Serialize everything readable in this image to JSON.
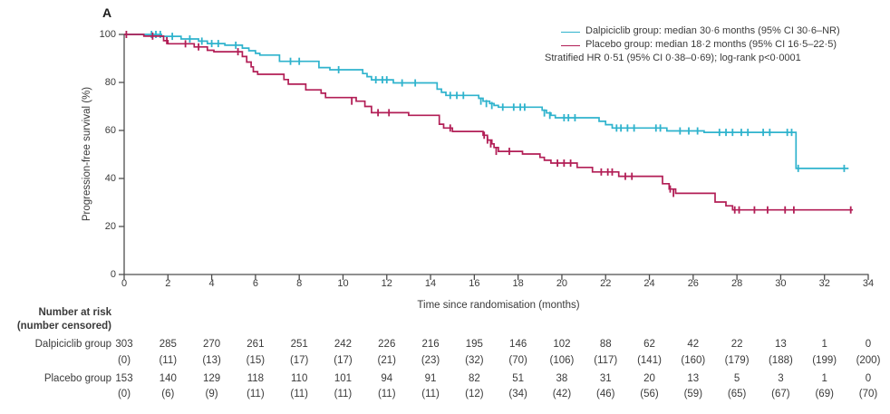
{
  "panel_label": "A",
  "axes": {
    "x_label": "Time since randomisation (months)",
    "y_label": "Progression-free survival (%)"
  },
  "legend": {
    "entries": [
      {
        "label": "Dalpiciclib group: median 30·6 months (95% CI 30·6–NR)",
        "color": "#2fb3cd"
      },
      {
        "label": "Placebo group: median 18·2 months (95% CI 16·5–22·5)",
        "color": "#b21e56"
      }
    ],
    "annotation": "Stratified HR 0·51 (95% CI 0·38–0·69); log-rank p<0·0001"
  },
  "risk_table": {
    "header_line1": "Number at risk",
    "header_line2": "(number censored)",
    "rows": [
      {
        "label": "Dalpiciclib group",
        "counts": [
          303,
          285,
          270,
          261,
          251,
          242,
          226,
          216,
          195,
          146,
          102,
          88,
          62,
          42,
          22,
          13,
          1,
          0
        ],
        "censored": [
          0,
          11,
          13,
          15,
          17,
          17,
          21,
          23,
          32,
          70,
          106,
          117,
          141,
          160,
          179,
          188,
          199,
          200
        ]
      },
      {
        "label": "Placebo group",
        "counts": [
          153,
          140,
          129,
          118,
          110,
          101,
          94,
          91,
          82,
          51,
          38,
          31,
          20,
          13,
          5,
          3,
          1,
          0
        ],
        "censored": [
          0,
          6,
          9,
          11,
          11,
          11,
          11,
          11,
          12,
          34,
          42,
          46,
          56,
          59,
          65,
          67,
          69,
          70
        ]
      }
    ]
  },
  "chart_data": {
    "type": "line",
    "subtype": "kaplan-meier-step",
    "title": "",
    "xlabel": "Time since randomisation (months)",
    "ylabel": "Progression-free survival (%)",
    "xlim": [
      0,
      34
    ],
    "ylim": [
      0,
      100
    ],
    "x_ticks": [
      0,
      2,
      4,
      6,
      8,
      10,
      12,
      14,
      16,
      18,
      20,
      22,
      24,
      26,
      28,
      30,
      32,
      34
    ],
    "y_ticks": [
      0,
      20,
      40,
      60,
      80,
      100
    ],
    "grid": false,
    "legend_position": "top-right",
    "axis_color": "#4d4d4d",
    "series": [
      {
        "name": "Dalpiciclib group",
        "color": "#2fb3cd",
        "median": "30·6 months",
        "ci_95": "30·6–NR",
        "end_month": 33.1,
        "steps": [
          [
            0,
            100
          ],
          [
            1.7,
            99.2
          ],
          [
            2.6,
            98.1
          ],
          [
            3.4,
            97.2
          ],
          [
            3.8,
            96.2
          ],
          [
            4.6,
            95.5
          ],
          [
            5.4,
            94.3
          ],
          [
            5.7,
            93.2
          ],
          [
            6.0,
            92.1
          ],
          [
            6.2,
            91.4
          ],
          [
            7.1,
            88.8
          ],
          [
            8.9,
            86.2
          ],
          [
            9.4,
            85.3
          ],
          [
            10.9,
            83.7
          ],
          [
            11.1,
            82.4
          ],
          [
            11.3,
            81.1
          ],
          [
            12.3,
            79.8
          ],
          [
            14.3,
            77.2
          ],
          [
            14.5,
            75.9
          ],
          [
            14.7,
            74.6
          ],
          [
            16.2,
            73.4
          ],
          [
            16.4,
            72.2
          ],
          [
            16.7,
            71.2
          ],
          [
            16.9,
            70.4
          ],
          [
            17.1,
            69.7
          ],
          [
            19.1,
            68.4
          ],
          [
            19.3,
            67.3
          ],
          [
            19.5,
            66.3
          ],
          [
            19.7,
            65.3
          ],
          [
            21.7,
            63.8
          ],
          [
            22.0,
            62.4
          ],
          [
            22.3,
            61.0
          ],
          [
            24.8,
            59.8
          ],
          [
            26.5,
            59.2
          ],
          [
            30.7,
            44.2
          ]
        ],
        "censors": [
          [
            1.25,
            100
          ],
          [
            1.45,
            100
          ],
          [
            1.65,
            100
          ],
          [
            2.2,
            99.2
          ],
          [
            3.0,
            98.1
          ],
          [
            3.55,
            97.2
          ],
          [
            4.0,
            96.2
          ],
          [
            4.3,
            96.2
          ],
          [
            5.1,
            95.5
          ],
          [
            7.6,
            88.8
          ],
          [
            8.0,
            88.8
          ],
          [
            9.8,
            85.3
          ],
          [
            11.5,
            81.1
          ],
          [
            11.8,
            81.1
          ],
          [
            12.0,
            81.1
          ],
          [
            12.7,
            79.8
          ],
          [
            13.3,
            79.8
          ],
          [
            14.9,
            74.6
          ],
          [
            15.2,
            74.6
          ],
          [
            15.5,
            74.6
          ],
          [
            16.3,
            72.2
          ],
          [
            16.55,
            71.2
          ],
          [
            16.8,
            70.4
          ],
          [
            17.3,
            69.7
          ],
          [
            17.8,
            69.7
          ],
          [
            18.1,
            69.7
          ],
          [
            18.3,
            69.7
          ],
          [
            19.2,
            67.3
          ],
          [
            19.45,
            66.3
          ],
          [
            20.1,
            65.3
          ],
          [
            20.3,
            65.3
          ],
          [
            20.6,
            65.3
          ],
          [
            22.5,
            61.0
          ],
          [
            22.7,
            61.0
          ],
          [
            23.0,
            61.0
          ],
          [
            23.3,
            61.0
          ],
          [
            24.3,
            61.0
          ],
          [
            24.5,
            61.0
          ],
          [
            25.4,
            59.8
          ],
          [
            25.8,
            59.8
          ],
          [
            26.2,
            59.8
          ],
          [
            27.2,
            59.2
          ],
          [
            27.5,
            59.2
          ],
          [
            27.8,
            59.2
          ],
          [
            28.2,
            59.2
          ],
          [
            28.5,
            59.2
          ],
          [
            29.2,
            59.2
          ],
          [
            29.5,
            59.2
          ],
          [
            30.3,
            59.2
          ],
          [
            30.5,
            59.2
          ],
          [
            30.8,
            44.2
          ],
          [
            32.9,
            44.2
          ]
        ]
      },
      {
        "name": "Placebo group",
        "color": "#b21e56",
        "median": "18·2 months",
        "ci_95": "16·5–22·5",
        "end_month": 33.3,
        "steps": [
          [
            0,
            100
          ],
          [
            0.9,
            99.3
          ],
          [
            1.8,
            97.4
          ],
          [
            2.0,
            96.1
          ],
          [
            3.2,
            94.8
          ],
          [
            3.8,
            93.4
          ],
          [
            4.1,
            92.8
          ],
          [
            5.4,
            90.8
          ],
          [
            5.6,
            88.5
          ],
          [
            5.8,
            86.5
          ],
          [
            5.9,
            84.5
          ],
          [
            6.1,
            83.4
          ],
          [
            7.3,
            81.2
          ],
          [
            7.5,
            79.3
          ],
          [
            8.3,
            76.9
          ],
          [
            9.0,
            75.5
          ],
          [
            9.2,
            73.7
          ],
          [
            10.6,
            72.2
          ],
          [
            11.0,
            70.0
          ],
          [
            11.3,
            67.4
          ],
          [
            13.0,
            66.3
          ],
          [
            14.4,
            62.6
          ],
          [
            14.6,
            61.0
          ],
          [
            15.0,
            59.6
          ],
          [
            16.4,
            58.0
          ],
          [
            16.6,
            56.0
          ],
          [
            16.8,
            54.4
          ],
          [
            16.9,
            52.9
          ],
          [
            17.1,
            51.3
          ],
          [
            18.2,
            50.2
          ],
          [
            19.0,
            48.8
          ],
          [
            19.2,
            47.6
          ],
          [
            19.5,
            46.4
          ],
          [
            20.7,
            44.6
          ],
          [
            21.4,
            42.7
          ],
          [
            22.6,
            40.9
          ],
          [
            24.6,
            37.8
          ],
          [
            24.9,
            35.6
          ],
          [
            25.2,
            33.8
          ],
          [
            27.0,
            30.2
          ],
          [
            27.5,
            28.6
          ],
          [
            27.8,
            26.9
          ]
        ],
        "censors": [
          [
            0.1,
            100
          ],
          [
            1.3,
            99.3
          ],
          [
            1.95,
            97.4
          ],
          [
            2.8,
            96.1
          ],
          [
            3.4,
            94.8
          ],
          [
            5.2,
            92.8
          ],
          [
            10.4,
            72.2
          ],
          [
            11.6,
            67.4
          ],
          [
            12.1,
            67.4
          ],
          [
            14.9,
            61.0
          ],
          [
            16.45,
            58.0
          ],
          [
            16.6,
            56.0
          ],
          [
            16.75,
            54.4
          ],
          [
            17.0,
            51.3
          ],
          [
            17.6,
            51.3
          ],
          [
            19.8,
            46.4
          ],
          [
            20.1,
            46.4
          ],
          [
            20.4,
            46.4
          ],
          [
            21.8,
            42.7
          ],
          [
            22.1,
            42.7
          ],
          [
            22.3,
            42.7
          ],
          [
            22.9,
            40.9
          ],
          [
            23.2,
            40.9
          ],
          [
            24.95,
            35.6
          ],
          [
            25.1,
            33.8
          ],
          [
            27.9,
            26.9
          ],
          [
            28.1,
            26.9
          ],
          [
            28.8,
            26.9
          ],
          [
            29.4,
            26.9
          ],
          [
            30.2,
            26.9
          ],
          [
            30.6,
            26.9
          ],
          [
            33.2,
            26.9
          ]
        ]
      }
    ],
    "annotation": "Stratified HR 0·51 (95% CI 0·38–0·69); log-rank p<0·0001"
  }
}
